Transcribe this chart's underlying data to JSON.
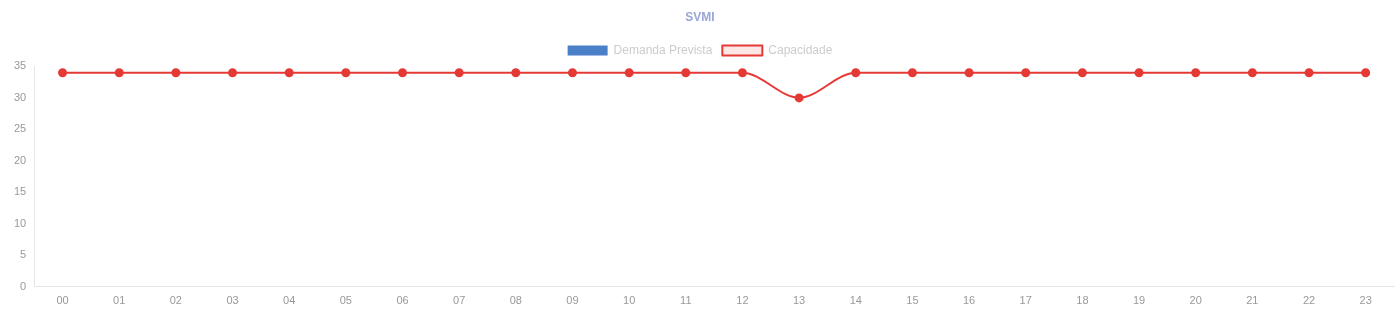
{
  "chart_data": {
    "type": "line",
    "title": "SVMI",
    "categories": [
      "00",
      "01",
      "02",
      "03",
      "04",
      "05",
      "06",
      "07",
      "08",
      "09",
      "10",
      "11",
      "12",
      "13",
      "14",
      "15",
      "16",
      "17",
      "18",
      "19",
      "20",
      "21",
      "22",
      "23"
    ],
    "series": [
      {
        "name": "Demanda Prevista",
        "type": "bar",
        "color": "#4a80c8",
        "values": [
          null,
          null,
          null,
          null,
          null,
          null,
          null,
          null,
          null,
          null,
          null,
          null,
          null,
          null,
          null,
          null,
          null,
          null,
          null,
          null,
          null,
          null,
          null,
          null
        ]
      },
      {
        "name": "Capacidade",
        "color": "#e53935",
        "values": [
          34,
          34,
          34,
          34,
          34,
          34,
          34,
          34,
          34,
          34,
          34,
          34,
          34,
          30,
          34,
          34,
          34,
          34,
          34,
          34,
          34,
          34,
          34,
          34
        ]
      }
    ],
    "ylim": [
      0,
      35
    ],
    "yticks": [
      0,
      5,
      10,
      15,
      20,
      25,
      30,
      35
    ],
    "grid": false,
    "legend": "top",
    "marker": "circle",
    "line_style": "solid"
  }
}
